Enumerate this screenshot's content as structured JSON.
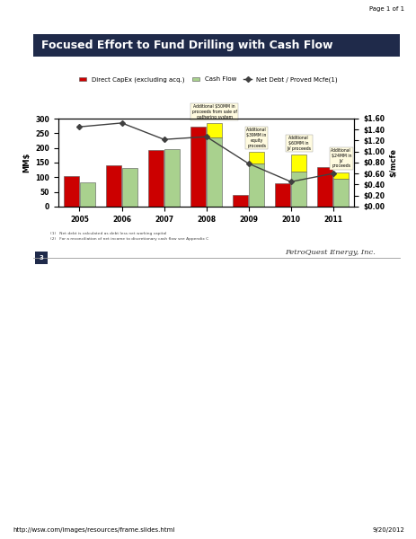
{
  "page": {
    "header": "Page 1 of 1",
    "footer_url": "http://wsw.com/images/resources/frame.slides.html",
    "footer_date": "9/20/2012"
  },
  "slide": {
    "number": "3",
    "logo": "PetroQuest Energy, Inc.",
    "footnotes": [
      "(1)   Net debt is calculated as debt less net working capital",
      "(2)   For a reconciliation of net income to discretionary cash flow see Appendix C"
    ]
  },
  "chart_data": {
    "type": "bar",
    "title": "Focused Effort to Fund Drilling with Cash Flow",
    "categories": [
      "2005",
      "2006",
      "2007",
      "2008",
      "2009",
      "2010",
      "2011"
    ],
    "ylabel": "MM$",
    "y2label": "$/mcfe",
    "ylim": [
      0,
      300
    ],
    "yticks": [
      0,
      50,
      100,
      150,
      200,
      250,
      300
    ],
    "y2lim": [
      0,
      1.6
    ],
    "y2ticks": [
      {
        "value": 0,
        "label": "$0.00"
      },
      {
        "value": 0.2,
        "label": "$0.20"
      },
      {
        "value": 0.4,
        "label": "$0.40"
      },
      {
        "value": 0.6,
        "label": "$0.60"
      },
      {
        "value": 0.8,
        "label": "$0.80"
      },
      {
        "value": 1.0,
        "label": "$1.00"
      },
      {
        "value": 1.2,
        "label": "$1.20"
      },
      {
        "value": 1.4,
        "label": "$1.40"
      },
      {
        "value": 1.6,
        "label": "$1.60"
      }
    ],
    "legend": "upper center",
    "series": [
      {
        "name": "Direct CapEx (excluding acq.)",
        "type": "bar",
        "color": "#cc0000",
        "values": [
          105,
          140,
          193,
          272,
          40,
          78,
          133
        ]
      },
      {
        "name": "Cash Flow",
        "type": "bar",
        "color": "#a9d18e",
        "values": [
          82,
          132,
          197,
          235,
          148,
          118,
          93
        ]
      },
      {
        "type": "bar",
        "stacked": true,
        "color": "#ffff00",
        "values": [
          null,
          null,
          null,
          50,
          39,
          60,
          24
        ]
      },
      {
        "name": "Net Debt / Proved Mcfe(1)",
        "type": "line",
        "axis": "y2",
        "color": "#404040",
        "marker": "diamond",
        "line_style": "solid",
        "values": [
          1.45,
          1.52,
          1.22,
          1.27,
          0.78,
          0.45,
          0.6
        ]
      }
    ],
    "annotations": [
      {
        "category": "2008",
        "text": "Additional $50MM in\nproceeds from sale of\ngathering system"
      },
      {
        "category": "2009",
        "text": "Additional\n$39MM in\nequity\nproceeds"
      },
      {
        "category": "2010",
        "text": "Additional\n$60MM in\nJV proceeds"
      },
      {
        "category": "2011",
        "text": "Additional\n$24MM in\nJV\nproceeds"
      }
    ]
  }
}
